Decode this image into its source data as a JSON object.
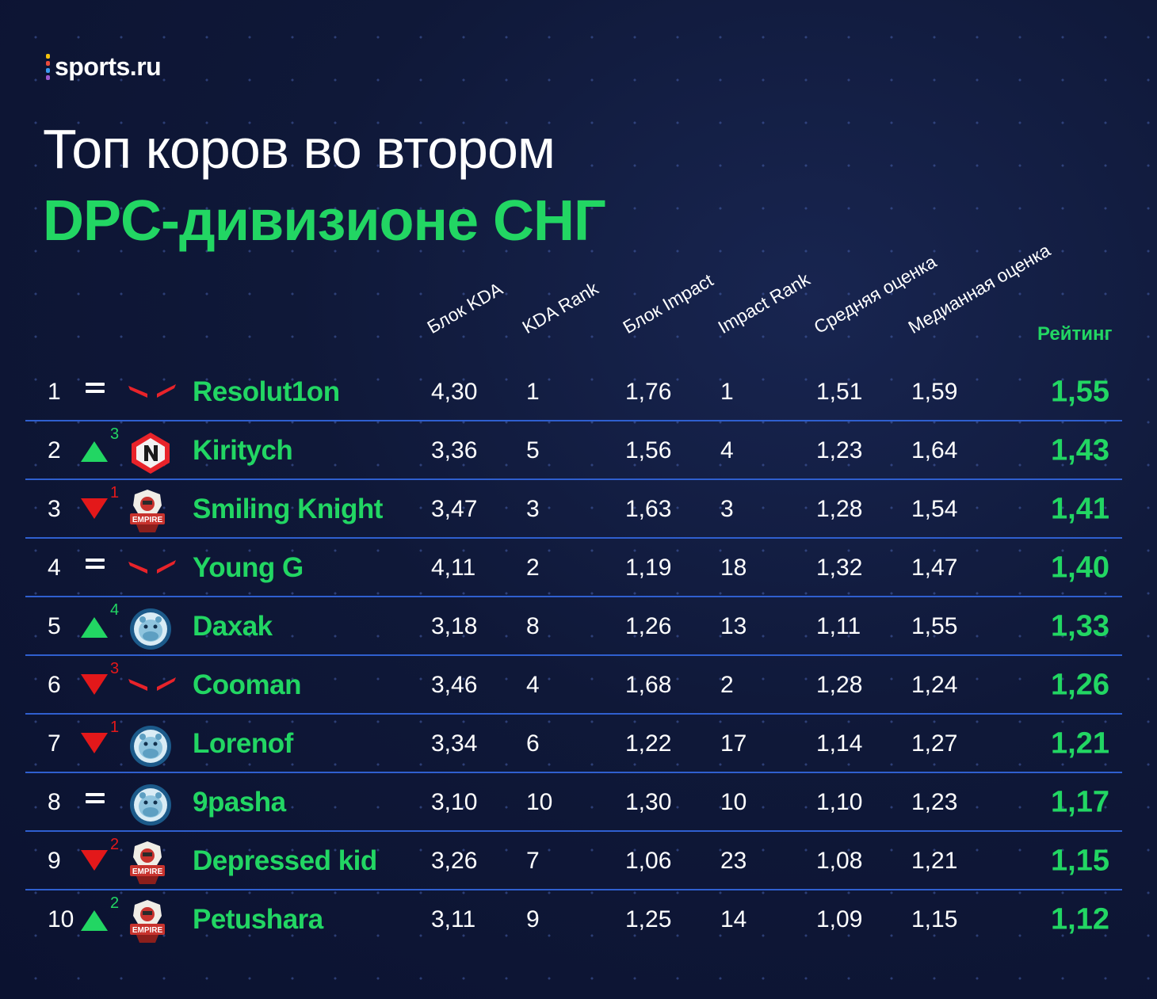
{
  "brand": {
    "name": "sports.ru",
    "dot_colors": [
      "#f4c20d",
      "#e94b3c",
      "#3b9bf0",
      "#9b59d0"
    ]
  },
  "title": {
    "line1": "Топ коров во втором",
    "line2": "DPC-дивизионе СНГ"
  },
  "columns": {
    "kda": "Блок KDA",
    "kda_rank": "KDA Rank",
    "impact": "Блок Impact",
    "impact_rank": "Impact Rank",
    "avg": "Средняя оценка",
    "median": "Медианная оценка",
    "rating": "Рейтинг"
  },
  "colors": {
    "accent": "#22d663",
    "down": "#e3181a",
    "separator": "#2f5fcf"
  },
  "rows": [
    {
      "rank": "1",
      "change_dir": "same",
      "change": "",
      "team": "vp-logo-icon",
      "player": "Resolut1on",
      "kda": "4,30",
      "kda_rank": "1",
      "impact": "1,76",
      "impact_rank": "1",
      "avg": "1,51",
      "median": "1,59",
      "rating": "1,55"
    },
    {
      "rank": "2",
      "change_dir": "up",
      "change": "3",
      "team": "navi-logo-icon",
      "player": "Kiritych",
      "kda": "3,36",
      "kda_rank": "5",
      "impact": "1,56",
      "impact_rank": "4",
      "avg": "1,23",
      "median": "1,64",
      "rating": "1,43"
    },
    {
      "rank": "3",
      "change_dir": "down",
      "change": "1",
      "team": "empire-logo-icon",
      "player": "Smiling Knight",
      "kda": "3,47",
      "kda_rank": "3",
      "impact": "1,63",
      "impact_rank": "3",
      "avg": "1,28",
      "median": "1,54",
      "rating": "1,41"
    },
    {
      "rank": "4",
      "change_dir": "same",
      "change": "",
      "team": "vp-logo-icon",
      "player": "Young G",
      "kda": "4,11",
      "kda_rank": "2",
      "impact": "1,19",
      "impact_rank": "18",
      "avg": "1,32",
      "median": "1,47",
      "rating": "1,40"
    },
    {
      "rank": "5",
      "change_dir": "up",
      "change": "4",
      "team": "hippo-logo-icon",
      "player": "Daxak",
      "kda": "3,18",
      "kda_rank": "8",
      "impact": "1,26",
      "impact_rank": "13",
      "avg": "1,11",
      "median": "1,55",
      "rating": "1,33"
    },
    {
      "rank": "6",
      "change_dir": "down",
      "change": "3",
      "team": "vp-logo-icon",
      "player": "Cooman",
      "kda": "3,46",
      "kda_rank": "4",
      "impact": "1,68",
      "impact_rank": "2",
      "avg": "1,28",
      "median": "1,24",
      "rating": "1,26"
    },
    {
      "rank": "7",
      "change_dir": "down",
      "change": "1",
      "team": "hippo-logo-icon",
      "player": "Lorenof",
      "kda": "3,34",
      "kda_rank": "6",
      "impact": "1,22",
      "impact_rank": "17",
      "avg": "1,14",
      "median": "1,27",
      "rating": "1,21"
    },
    {
      "rank": "8",
      "change_dir": "same",
      "change": "",
      "team": "hippo-logo-icon",
      "player": "9pasha",
      "kda": "3,10",
      "kda_rank": "10",
      "impact": "1,30",
      "impact_rank": "10",
      "avg": "1,10",
      "median": "1,23",
      "rating": "1,17"
    },
    {
      "rank": "9",
      "change_dir": "down",
      "change": "2",
      "team": "empire-logo-icon",
      "player": "Depressed kid",
      "kda": "3,26",
      "kda_rank": "7",
      "impact": "1,06",
      "impact_rank": "23",
      "avg": "1,08",
      "median": "1,21",
      "rating": "1,15"
    },
    {
      "rank": "10",
      "change_dir": "up",
      "change": "2",
      "team": "empire-logo-icon",
      "player": "Petushara",
      "kda": "3,11",
      "kda_rank": "9",
      "impact": "1,25",
      "impact_rank": "14",
      "avg": "1,09",
      "median": "1,15",
      "rating": "1,12"
    }
  ]
}
